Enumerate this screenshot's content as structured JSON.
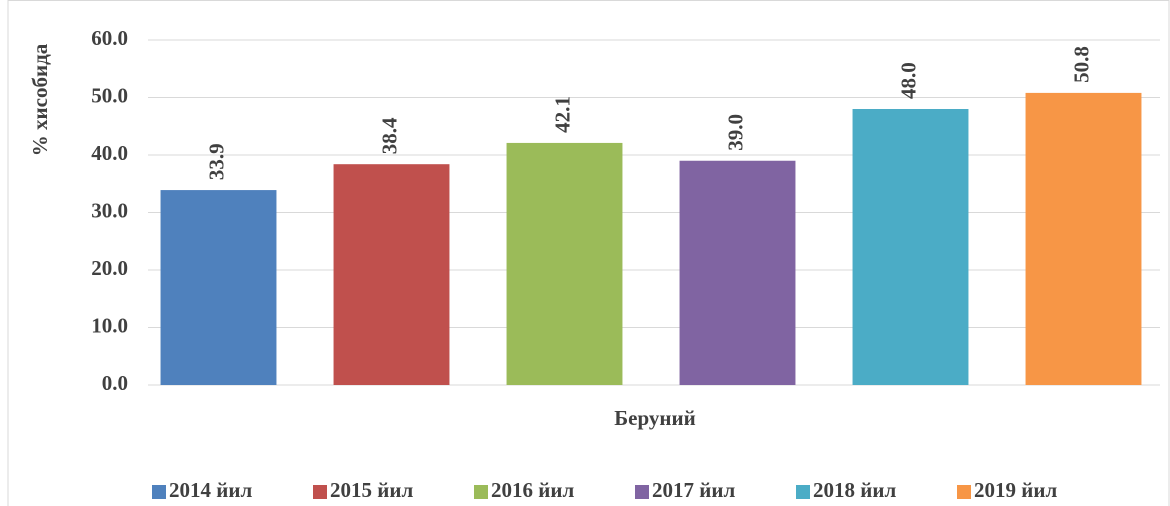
{
  "chart_data": {
    "type": "bar",
    "y_label": "% хисобида",
    "x_label": "Беруний",
    "categories": [
      "Беруний"
    ],
    "series": [
      {
        "name": "2014 йил",
        "color": "#4f81bd",
        "values": [
          33.9
        ],
        "value_labels": [
          "33.9"
        ]
      },
      {
        "name": "2015 йил",
        "color": "#c0504d",
        "values": [
          38.4
        ],
        "value_labels": [
          "38.4"
        ]
      },
      {
        "name": "2016 йил",
        "color": "#9bbb59",
        "values": [
          42.1
        ],
        "value_labels": [
          "42.1"
        ]
      },
      {
        "name": "2017 йил",
        "color": "#8064a2",
        "values": [
          39.0
        ],
        "value_labels": [
          "39.0"
        ]
      },
      {
        "name": "2018 йил",
        "color": "#4bacc6",
        "values": [
          48.0
        ],
        "value_labels": [
          "48.0"
        ]
      },
      {
        "name": "2019 йил",
        "color": "#f79646",
        "values": [
          50.8
        ],
        "value_labels": [
          "50.8"
        ]
      }
    ],
    "ylim": [
      0,
      60
    ],
    "yticks": [
      {
        "value": 0,
        "label": "0.0"
      },
      {
        "value": 10,
        "label": "10.0"
      },
      {
        "value": 20,
        "label": "20.0"
      },
      {
        "value": 30,
        "label": "30.0"
      },
      {
        "value": 40,
        "label": "40.0"
      },
      {
        "value": 50,
        "label": "50.0"
      },
      {
        "value": 60,
        "label": "60.0"
      }
    ],
    "grid": true,
    "legend": "bottom"
  }
}
